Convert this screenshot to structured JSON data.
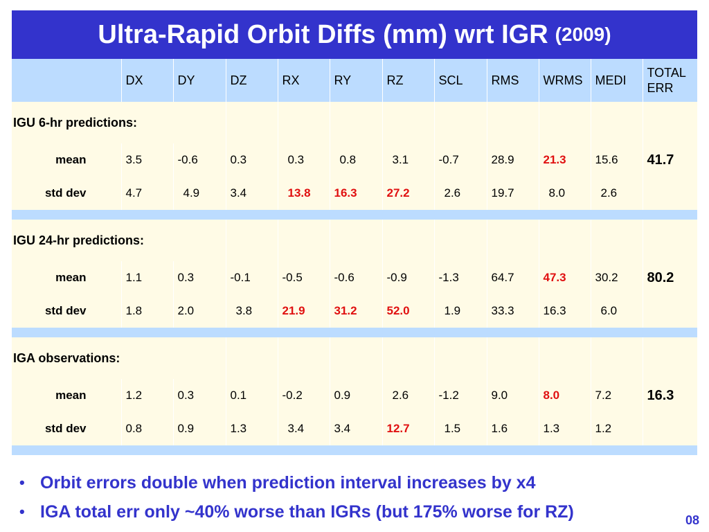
{
  "title": {
    "main": "Ultra-Rapid Orbit Diffs (mm) wrt IGR",
    "year": "(2009)"
  },
  "columns": [
    "DX",
    "DY",
    "DZ",
    "RX",
    "RY",
    "RZ",
    "SCL",
    "RMS",
    "WRMS",
    "MEDI"
  ],
  "total_header_line1": "TOTAL",
  "total_header_line2": "ERR",
  "sections": [
    {
      "label": "IGU 6-hr predictions:",
      "mean_label": "mean",
      "mean": [
        "3.5",
        "-0.6",
        "0.3",
        "0.3",
        "0.8",
        "3.1",
        "-0.7",
        "28.9",
        "21.3",
        "15.6"
      ],
      "total": "41.7",
      "std_label": "std dev",
      "std": [
        "4.7",
        "4.9",
        "3.4",
        "13.8",
        "16.3",
        "27.2",
        "2.6",
        "19.7",
        "8.0",
        "2.6"
      ]
    },
    {
      "label": "IGU 24-hr predictions:",
      "mean_label": "mean",
      "mean": [
        "1.1",
        "0.3",
        "-0.1",
        "-0.5",
        "-0.6",
        "-0.9",
        "-1.3",
        "64.7",
        "47.3",
        "30.2"
      ],
      "total": "80.2",
      "std_label": "std dev",
      "std": [
        "1.8",
        "2.0",
        "3.8",
        "21.9",
        "31.2",
        "52.0",
        "1.9",
        "33.3",
        "16.3",
        "6.0"
      ]
    },
    {
      "label": "IGA observations:",
      "mean_label": "mean",
      "mean": [
        "1.2",
        "0.3",
        "0.1",
        "-0.2",
        "0.9",
        "2.6",
        "-1.2",
        "9.0",
        "8.0",
        "7.2"
      ],
      "total": "16.3",
      "std_label": "std dev",
      "std": [
        "0.8",
        "0.9",
        "1.3",
        "3.4",
        "3.4",
        "12.7",
        "1.5",
        "1.6",
        "1.3",
        "1.2"
      ]
    }
  ],
  "bullets": [
    "Orbit errors double when prediction interval increases by x4",
    "IGA total err only ~40% worse than IGRs (but 175% worse for RZ)"
  ],
  "bullet_symbol": "•",
  "page_number": "08",
  "colors": {
    "title_bg": "#3333cc",
    "header_bg": "#bcdcff",
    "body_bg": "#fffbe6",
    "highlight": "#e01010",
    "bullet_text": "#3333cc"
  }
}
